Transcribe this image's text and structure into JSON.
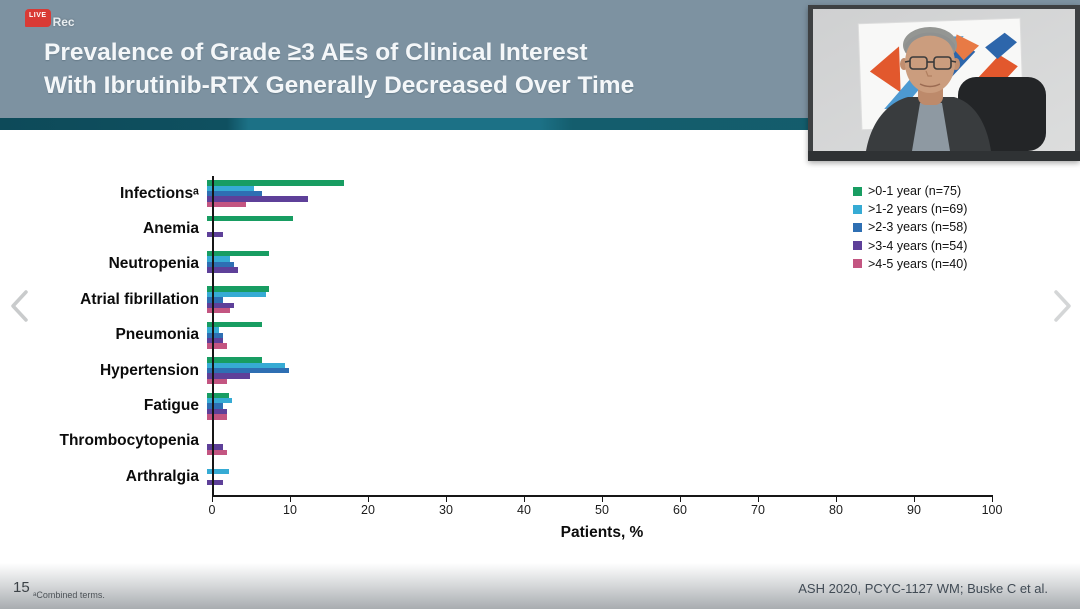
{
  "recording": {
    "badge": "LIVE",
    "label": "Rec"
  },
  "header": {
    "title_line1": "Prevalence of Grade ≥3 AEs of Clinical Interest",
    "title_line2": "With Ibrutinib-RTX Generally Decreased Over Time"
  },
  "icons": {
    "prev": "chevron-left",
    "next": "chevron-right",
    "recording": "live-rec-badge"
  },
  "chart_data": {
    "type": "bar",
    "orientation": "horizontal",
    "title": "Prevalence of Grade ≥3 AEs of Clinical Interest With Ibrutinib-RTX Generally Decreased Over Time",
    "categories": [
      "Infectionsᵃ",
      "Anemia",
      "Neutropenia",
      "Atrial fibrillation",
      "Pneumonia",
      "Hypertension",
      "Fatigue",
      "Thrombocytopenia",
      "Arthralgia"
    ],
    "series": [
      {
        "name": ">0-1 year (n=75)",
        "color": "#189d62",
        "values": [
          17.5,
          11,
          8,
          8,
          7,
          7,
          2.8,
          0,
          0
        ]
      },
      {
        "name": ">1-2 years (n=69)",
        "color": "#36abd4",
        "values": [
          6,
          0,
          3,
          7.5,
          1.5,
          10,
          3.2,
          0,
          2.8
        ]
      },
      {
        "name": ">2-3 years (n=58)",
        "color": "#2e6fb3",
        "values": [
          7,
          0,
          3.5,
          2,
          2,
          10.5,
          2,
          0,
          0
        ]
      },
      {
        "name": ">3-4 years (n=54)",
        "color": "#5e4099",
        "values": [
          13,
          2,
          4,
          3.5,
          2,
          5.5,
          2.5,
          2,
          2
        ]
      },
      {
        "name": ">4-5 years (n=40)",
        "color": "#c35581",
        "values": [
          5,
          0,
          0,
          3,
          2.5,
          2.5,
          2.5,
          2.5,
          0
        ]
      }
    ],
    "xlabel": "Patients, %",
    "xlim": [
      0,
      100
    ],
    "xticks": [
      0,
      10,
      20,
      30,
      40,
      50,
      60,
      70,
      80,
      90,
      100
    ],
    "legend_position": "top-right",
    "grid": false
  },
  "footer": {
    "slide_number": "15",
    "footnote": "ᵃCombined terms.",
    "citation": "ASH 2020, PCYC-1127 WM; Buske C et al."
  }
}
